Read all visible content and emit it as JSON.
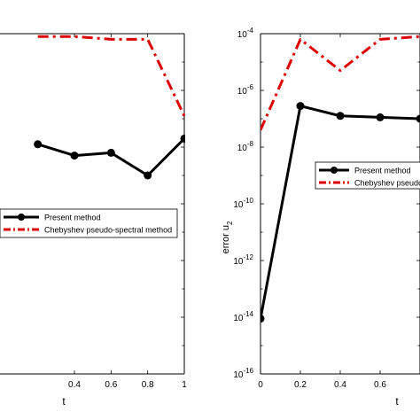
{
  "chart_data": [
    {
      "type": "line",
      "xlabel": "t",
      "ylabel": "",
      "xlim": [
        -0.2,
        1.0
      ],
      "ylim": [
        -16,
        -4
      ],
      "y_scale": "log",
      "xticks": [
        {
          "v": 0.4,
          "label": "0.4"
        },
        {
          "v": 0.6,
          "label": "0.6"
        },
        {
          "v": 0.8,
          "label": "0.8"
        },
        {
          "v": 1.0,
          "label": "1"
        }
      ],
      "legend_position": "center",
      "series": [
        {
          "name": "Present method",
          "color": "#000000",
          "style": "solid-marker",
          "x": [
            0.2,
            0.4,
            0.6,
            0.8,
            1.0
          ],
          "y": [
            -7.9,
            -8.3,
            -8.2,
            -9.0,
            -7.7
          ]
        },
        {
          "name": "Chebyshev pseudo-spectral method",
          "color": "#dd0000",
          "style": "dashdot",
          "x": [
            0.2,
            0.4,
            0.6,
            0.8,
            1.0
          ],
          "y": [
            -4.1,
            -4.1,
            -4.2,
            -4.2,
            -6.9
          ]
        }
      ]
    },
    {
      "type": "line",
      "xlabel": "t",
      "ylabel": "error u",
      "ylabel_sub": "2",
      "xlim": [
        0,
        0.8
      ],
      "ylim": [
        -16,
        -4
      ],
      "y_scale": "log",
      "xticks": [
        {
          "v": 0,
          "label": "0"
        },
        {
          "v": 0.2,
          "label": "0.2"
        },
        {
          "v": 0.4,
          "label": "0.4"
        },
        {
          "v": 0.6,
          "label": "0.6"
        }
      ],
      "yticks": [
        {
          "v": -4,
          "base": "10",
          "exp": "-4"
        },
        {
          "v": -6,
          "base": "10",
          "exp": "-6"
        },
        {
          "v": -8,
          "base": "10",
          "exp": "-8"
        },
        {
          "v": -10,
          "base": "10",
          "exp": "-10"
        },
        {
          "v": -12,
          "base": "10",
          "exp": "-12"
        },
        {
          "v": -14,
          "base": "10",
          "exp": "-14"
        },
        {
          "v": -16,
          "base": "10",
          "exp": "-16"
        }
      ],
      "legend_position": "center-right",
      "series": [
        {
          "name": "Present method",
          "color": "#000000",
          "style": "solid-marker",
          "x": [
            0,
            0.2,
            0.4,
            0.6,
            0.8
          ],
          "y": [
            -14.05,
            -6.55,
            -6.9,
            -6.95,
            -7.0
          ]
        },
        {
          "name": "Chebyshev pseudo",
          "color": "#dd0000",
          "style": "dashdot",
          "x": [
            0,
            0.2,
            0.4,
            0.6,
            0.8
          ],
          "y": [
            -7.4,
            -4.2,
            -5.3,
            -4.2,
            -4.1
          ]
        }
      ]
    }
  ]
}
